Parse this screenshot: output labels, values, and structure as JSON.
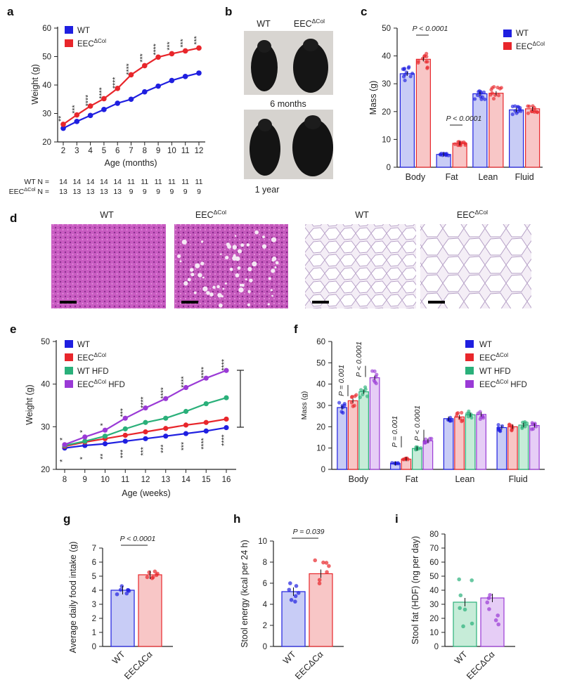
{
  "panel_labels": {
    "a": "a",
    "b": "b",
    "c": "c",
    "d": "d",
    "e": "e",
    "f": "f",
    "g": "g",
    "h": "h",
    "i": "i"
  },
  "groups": {
    "wt": "WT",
    "eec_base": "EEC",
    "eec_sup": "ΔCol",
    "eec_sup_alt": "ΔCα",
    "wt_hfd": "WT HFD",
    "eec_hfd_suffix": " HFD"
  },
  "colors": {
    "wt": "#1f1fe0",
    "eec": "#e8262b",
    "wt_hfd": "#2ab07a",
    "eec_hfd": "#9a3ad6",
    "wt_fill": "#c8ccf6",
    "eec_fill": "#f8c6c6",
    "wthfd_fill": "#c6ecd8",
    "eechfd_fill": "#e6cdf6"
  },
  "chart_data": [
    {
      "id": "a",
      "type": "line",
      "xlabel": "Age (months)",
      "ylabel": "Weight (g)",
      "x": [
        2,
        3,
        4,
        5,
        6,
        7,
        8,
        9,
        10,
        11,
        12
      ],
      "xlim": [
        2,
        12
      ],
      "ylim": [
        20,
        60
      ],
      "yticks": [
        20,
        30,
        40,
        50,
        60
      ],
      "series": [
        {
          "name": "WT",
          "values": [
            24.8,
            27.2,
            29.3,
            31.4,
            33.6,
            35.0,
            37.6,
            39.6,
            41.6,
            43.0,
            44.2
          ]
        },
        {
          "name": "EECΔCol",
          "values": [
            26.2,
            29.5,
            32.6,
            35.2,
            38.8,
            43.6,
            46.8,
            49.8,
            51.0,
            52.0,
            53.0
          ]
        }
      ],
      "significance": [
        "**",
        "***",
        "****",
        "****",
        "****",
        "****",
        "***",
        "****",
        "***",
        "***",
        "***"
      ],
      "n_table": {
        "wt_label": "WT N =",
        "eec_label_base": "EEC",
        "eec_label_sup": "ΔCol",
        "eec_label_suffix": " N =",
        "wt": [
          "14",
          "14",
          "14",
          "14",
          "14",
          "11",
          "11",
          "11",
          "11",
          "11",
          "11"
        ],
        "eec": [
          "13",
          "13",
          "13",
          "13",
          "13",
          "9",
          "9",
          "9",
          "9",
          "9",
          "9"
        ]
      }
    },
    {
      "id": "c",
      "type": "bar",
      "categories": [
        "Body",
        "Fat",
        "Lean",
        "Fluid"
      ],
      "ylabel": "Mass (g)",
      "ylim": [
        0,
        50
      ],
      "yticks": [
        0,
        10,
        20,
        30,
        40,
        50
      ],
      "series": [
        {
          "name": "WT",
          "values": [
            33.6,
            4.6,
            26.4,
            20.6
          ]
        },
        {
          "name": "EECΔCol",
          "values": [
            38.8,
            8.6,
            26.6,
            21.0
          ]
        }
      ],
      "annotations": [
        {
          "text": "P < 0.0001",
          "category": "Body"
        },
        {
          "text": "P < 0.0001",
          "category": "Fat"
        }
      ]
    },
    {
      "id": "e",
      "type": "line",
      "xlabel": "Age (weeks)",
      "ylabel": "Weight (g)",
      "x": [
        8,
        9,
        10,
        11,
        12,
        13,
        14,
        15,
        16
      ],
      "xlim": [
        8,
        16
      ],
      "ylim": [
        20,
        50
      ],
      "yticks": [
        20,
        30,
        40,
        50
      ],
      "series": [
        {
          "name": "WT",
          "values": [
            25.0,
            25.6,
            26.0,
            26.6,
            27.2,
            27.8,
            28.4,
            29.0,
            29.8
          ]
        },
        {
          "name": "EECΔCol",
          "values": [
            25.4,
            26.4,
            27.2,
            28.0,
            28.8,
            29.6,
            30.4,
            31.0,
            31.8
          ]
        },
        {
          "name": "WT HFD",
          "values": [
            25.6,
            26.6,
            27.8,
            29.5,
            31.0,
            32.0,
            33.6,
            35.4,
            36.8
          ]
        },
        {
          "name": "EECΔCol HFD",
          "values": [
            25.8,
            27.6,
            29.2,
            32.0,
            34.4,
            36.6,
            39.2,
            41.4,
            43.2
          ]
        }
      ],
      "sig_top": [
        "*",
        "*",
        "*",
        "***",
        "****",
        "****",
        "****",
        "****",
        "****"
      ],
      "sig_bottom": [
        "*",
        "*",
        "**",
        "***",
        "***",
        "***",
        "***",
        "****",
        "****"
      ]
    },
    {
      "id": "f",
      "type": "bar",
      "categories": [
        "Body",
        "Fat",
        "Lean",
        "Fluid"
      ],
      "ylabel": "Mass (g)",
      "ylim": [
        0,
        60
      ],
      "yticks": [
        0,
        10,
        20,
        30,
        40,
        50,
        60
      ],
      "series": [
        {
          "name": "WT",
          "values": [
            29.0,
            2.8,
            23.8,
            19.6
          ]
        },
        {
          "name": "EECΔCol",
          "values": [
            32.2,
            4.8,
            24.6,
            20.0
          ]
        },
        {
          "name": "WT HFD",
          "values": [
            36.4,
            9.8,
            25.6,
            20.8
          ]
        },
        {
          "name": "EECΔCol HFD",
          "values": [
            43.0,
            13.4,
            25.8,
            20.6
          ]
        }
      ],
      "annotations": [
        "P = 0.001",
        "P < 0.0001",
        "P = 0.001",
        "P < 0.0001"
      ]
    },
    {
      "id": "g",
      "type": "bar",
      "categories": [
        "WT",
        "EECΔCα"
      ],
      "ylabel": "Average daily food intake (g)",
      "ylim": [
        0,
        7
      ],
      "yticks": [
        0,
        1,
        2,
        3,
        4,
        5,
        6,
        7
      ],
      "values": [
        4.0,
        5.1
      ],
      "p": "P < 0.0001"
    },
    {
      "id": "h",
      "type": "bar",
      "categories": [
        "WT",
        "EECΔCα"
      ],
      "ylabel": "Stool energy (kcal per 24 h)",
      "ylim": [
        0,
        10
      ],
      "yticks": [
        0,
        2,
        4,
        6,
        8,
        10
      ],
      "values": [
        5.2,
        6.9
      ],
      "p": "P = 0.039"
    },
    {
      "id": "i",
      "type": "bar",
      "categories": [
        "WT",
        "EECΔCα"
      ],
      "ylabel": "Stool fat (HDF) (ng per day)",
      "ylim": [
        0,
        80
      ],
      "yticks": [
        0,
        10,
        20,
        30,
        40,
        50,
        60,
        70,
        80
      ],
      "values": [
        31.5,
        34.5
      ]
    }
  ],
  "panel_b": {
    "col_wt": "WT",
    "time1": "6 months",
    "time2": "1 year"
  },
  "panel_d": {
    "wt": "WT"
  }
}
